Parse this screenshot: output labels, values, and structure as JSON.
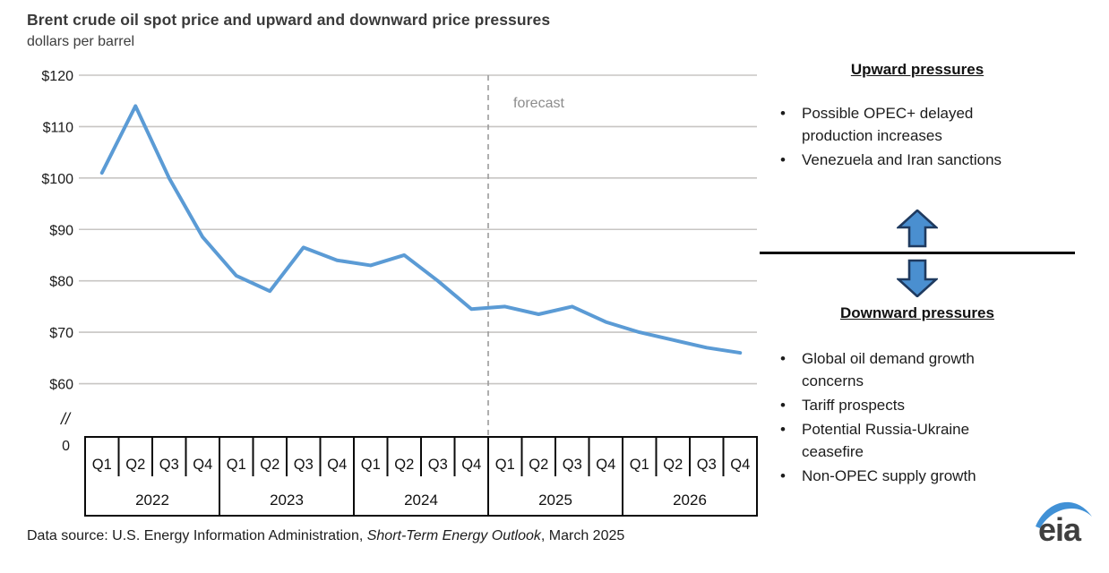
{
  "header": {
    "title": "Brent crude oil spot price and upward and downward price pressures",
    "subtitle": "dollars per barrel"
  },
  "chart_data": {
    "type": "line",
    "title": "Brent crude oil spot price and upward and downward price pressures",
    "ylabel": "dollars per barrel",
    "series_name": "Brent crude oil spot price",
    "categories": [
      "2022 Q1",
      "2022 Q2",
      "2022 Q3",
      "2022 Q4",
      "2023 Q1",
      "2023 Q2",
      "2023 Q3",
      "2023 Q4",
      "2024 Q1",
      "2024 Q2",
      "2024 Q3",
      "2024 Q4",
      "2025 Q1",
      "2025 Q2",
      "2025 Q3",
      "2025 Q4",
      "2026 Q1",
      "2026 Q2",
      "2026 Q3",
      "2026 Q4"
    ],
    "values": [
      101,
      114,
      100,
      88.5,
      81,
      78,
      86.5,
      84,
      83,
      85,
      80,
      74.5,
      75,
      73.5,
      75,
      72,
      70,
      68.5,
      67,
      66
    ],
    "quarter_labels": [
      "Q1",
      "Q2",
      "Q3",
      "Q4"
    ],
    "years": [
      "2022",
      "2023",
      "2024",
      "2025",
      "2026"
    ],
    "y_tick_labels": [
      "$120",
      "$110",
      "$100",
      "$90",
      "$80",
      "$70",
      "$60"
    ],
    "y_tick_values": [
      120,
      110,
      100,
      90,
      80,
      70,
      60
    ],
    "axis_break_label": "//",
    "zero_label": "0",
    "ylim": [
      60,
      120
    ],
    "grid": "horizontal",
    "legend": "none",
    "forecast_label": "forecast",
    "forecast_starts_at_category": "2025 Q1",
    "line_color": "#5B9BD5"
  },
  "right_panel": {
    "upward": {
      "heading": "Upward pressures",
      "bullets": [
        "Possible OPEC+ delayed production increases",
        "Venezuela and Iran sanctions"
      ]
    },
    "downward": {
      "heading": "Downward pressures",
      "bullets": [
        "Global oil demand growth concerns",
        "Tariff prospects",
        "Potential Russia-Ukraine ceasefire",
        "Non-OPEC supply growth"
      ]
    },
    "arrow_fill_color": "#4a8fd0",
    "arrow_border_color": "#1f3a5f"
  },
  "footer": {
    "source_prefix": "Data source: U.S. Energy Information Administration, ",
    "source_italic": "Short-Term Energy Outlook",
    "source_suffix": ", March 2025",
    "logo_text": "eia"
  }
}
